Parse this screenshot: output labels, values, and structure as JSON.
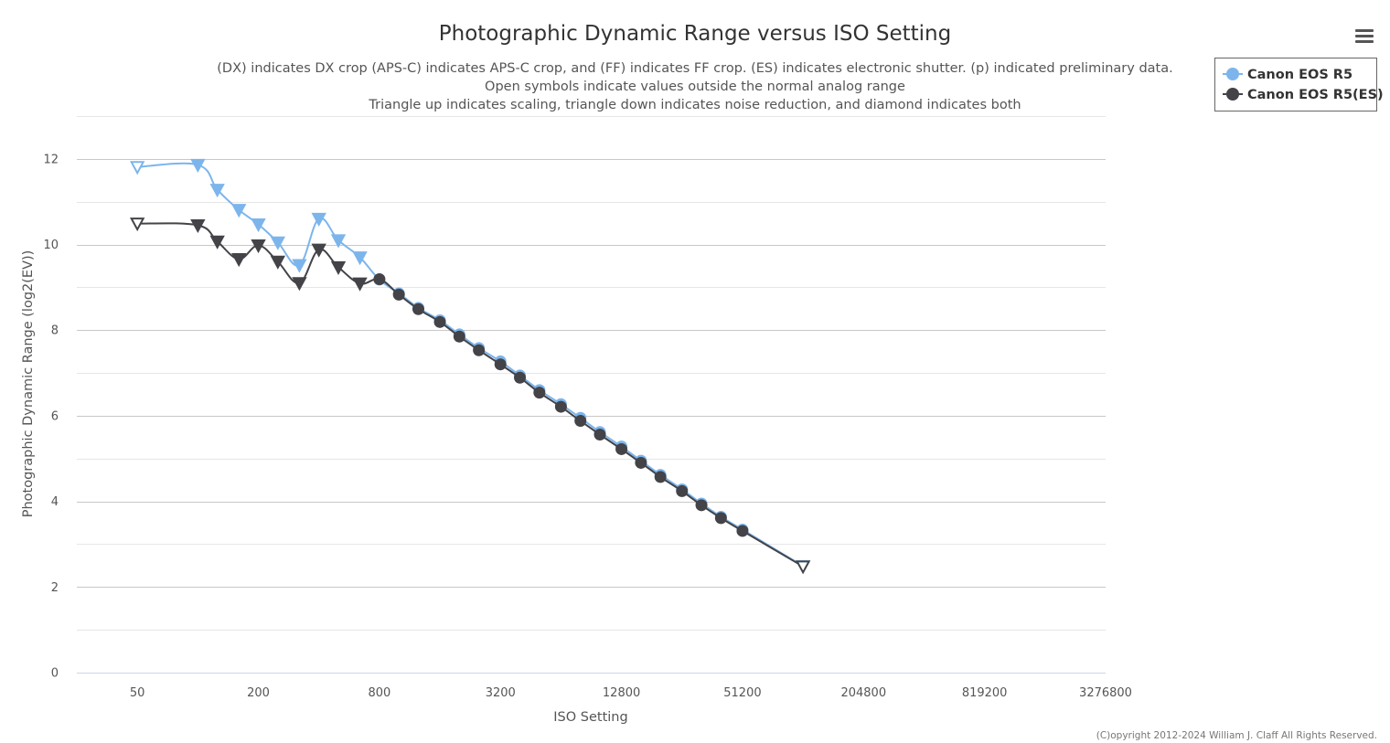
{
  "chart_data": {
    "type": "line",
    "title": "Photographic Dynamic Range versus ISO Setting",
    "subtitle_lines": [
      "(DX) indicates DX crop (APS-C) indicates APS-C crop, and (FF) indicates FF crop. (ES) indicates electronic shutter. (p) indicated preliminary data.",
      "Open symbols indicate values outside the normal analog range",
      "Triangle up indicates scaling, triangle down indicates noise reduction, and diamond indicates both"
    ],
    "xlabel": "ISO Setting",
    "ylabel": "Photographic Dynamic Range (log2(EV))",
    "x_scale": "log2",
    "xlim": [
      25,
      3276800
    ],
    "ylim": [
      0,
      13
    ],
    "x_ticks": [
      50,
      200,
      800,
      3200,
      12800,
      51200,
      204800,
      819200,
      3276800
    ],
    "x_tick_labels": [
      "50",
      "200",
      "800",
      "3200",
      "12800",
      "51200",
      "204800",
      "819200",
      "3276800"
    ],
    "y_ticks": [
      0,
      2,
      4,
      6,
      8,
      10,
      12
    ],
    "y_tick_labels": [
      "0",
      "2",
      "4",
      "6",
      "8",
      "10",
      "12"
    ],
    "grid": true,
    "legend_position": "top-right",
    "series": [
      {
        "name": "Canon EOS R5",
        "color": "#7cb5ec",
        "points": [
          {
            "x": 50,
            "y": 11.81,
            "m": "tri-down-open"
          },
          {
            "x": 100,
            "y": 11.86,
            "m": "tri-down"
          },
          {
            "x": 125,
            "y": 11.28,
            "m": "tri-down"
          },
          {
            "x": 160,
            "y": 10.81,
            "m": "tri-down"
          },
          {
            "x": 200,
            "y": 10.47,
            "m": "tri-down"
          },
          {
            "x": 250,
            "y": 10.05,
            "m": "tri-down"
          },
          {
            "x": 320,
            "y": 9.52,
            "m": "tri-down"
          },
          {
            "x": 400,
            "y": 10.6,
            "m": "tri-down"
          },
          {
            "x": 500,
            "y": 10.1,
            "m": "tri-down"
          },
          {
            "x": 640,
            "y": 9.7,
            "m": "tri-down"
          },
          {
            "x": 800,
            "y": 9.18,
            "m": "circle"
          },
          {
            "x": 1000,
            "y": 8.86,
            "m": "circle"
          },
          {
            "x": 1250,
            "y": 8.52,
            "m": "circle"
          },
          {
            "x": 1600,
            "y": 8.23,
            "m": "circle"
          },
          {
            "x": 2000,
            "y": 7.9,
            "m": "circle"
          },
          {
            "x": 2500,
            "y": 7.58,
            "m": "circle"
          },
          {
            "x": 3200,
            "y": 7.27,
            "m": "circle"
          },
          {
            "x": 4000,
            "y": 6.94,
            "m": "circle"
          },
          {
            "x": 5000,
            "y": 6.6,
            "m": "circle"
          },
          {
            "x": 6400,
            "y": 6.27,
            "m": "circle"
          },
          {
            "x": 8000,
            "y": 5.95,
            "m": "circle"
          },
          {
            "x": 10000,
            "y": 5.62,
            "m": "circle"
          },
          {
            "x": 12800,
            "y": 5.28,
            "m": "circle"
          },
          {
            "x": 16000,
            "y": 4.95,
            "m": "circle"
          },
          {
            "x": 20000,
            "y": 4.62,
            "m": "circle"
          },
          {
            "x": 25600,
            "y": 4.28,
            "m": "circle"
          },
          {
            "x": 32000,
            "y": 3.95,
            "m": "circle"
          },
          {
            "x": 40000,
            "y": 3.64,
            "m": "circle"
          },
          {
            "x": 51200,
            "y": 3.34,
            "m": "circle"
          },
          {
            "x": 102400,
            "y": 2.49,
            "m": "tri-down-open"
          }
        ]
      },
      {
        "name": "Canon EOS R5(ES)",
        "color": "#434348",
        "points": [
          {
            "x": 50,
            "y": 10.49,
            "m": "tri-down-open"
          },
          {
            "x": 100,
            "y": 10.45,
            "m": "tri-down"
          },
          {
            "x": 125,
            "y": 10.07,
            "m": "tri-down"
          },
          {
            "x": 160,
            "y": 9.66,
            "m": "tri-down"
          },
          {
            "x": 200,
            "y": 9.98,
            "m": "tri-down"
          },
          {
            "x": 250,
            "y": 9.6,
            "m": "tri-down"
          },
          {
            "x": 320,
            "y": 9.1,
            "m": "tri-down"
          },
          {
            "x": 400,
            "y": 9.88,
            "m": "tri-down"
          },
          {
            "x": 500,
            "y": 9.47,
            "m": "tri-down"
          },
          {
            "x": 640,
            "y": 9.09,
            "m": "tri-down"
          },
          {
            "x": 800,
            "y": 9.19,
            "m": "circle"
          },
          {
            "x": 1000,
            "y": 8.83,
            "m": "circle"
          },
          {
            "x": 1250,
            "y": 8.49,
            "m": "circle"
          },
          {
            "x": 1600,
            "y": 8.19,
            "m": "circle"
          },
          {
            "x": 2000,
            "y": 7.85,
            "m": "circle"
          },
          {
            "x": 2500,
            "y": 7.53,
            "m": "circle"
          },
          {
            "x": 3200,
            "y": 7.2,
            "m": "circle"
          },
          {
            "x": 4000,
            "y": 6.89,
            "m": "circle"
          },
          {
            "x": 5000,
            "y": 6.54,
            "m": "circle"
          },
          {
            "x": 6400,
            "y": 6.21,
            "m": "circle"
          },
          {
            "x": 8000,
            "y": 5.88,
            "m": "circle"
          },
          {
            "x": 10000,
            "y": 5.56,
            "m": "circle"
          },
          {
            "x": 12800,
            "y": 5.22,
            "m": "circle"
          },
          {
            "x": 16000,
            "y": 4.9,
            "m": "circle"
          },
          {
            "x": 20000,
            "y": 4.57,
            "m": "circle"
          },
          {
            "x": 25600,
            "y": 4.24,
            "m": "circle"
          },
          {
            "x": 32000,
            "y": 3.91,
            "m": "circle"
          },
          {
            "x": 40000,
            "y": 3.61,
            "m": "circle"
          },
          {
            "x": 51200,
            "y": 3.31,
            "m": "circle"
          },
          {
            "x": 102400,
            "y": 2.48,
            "m": "tri-down-open"
          }
        ]
      }
    ],
    "credits": "(C)opyright 2012-2024 William J. Claff All Rights Reserved."
  },
  "menu": {
    "icon": "hamburger-menu-icon"
  }
}
